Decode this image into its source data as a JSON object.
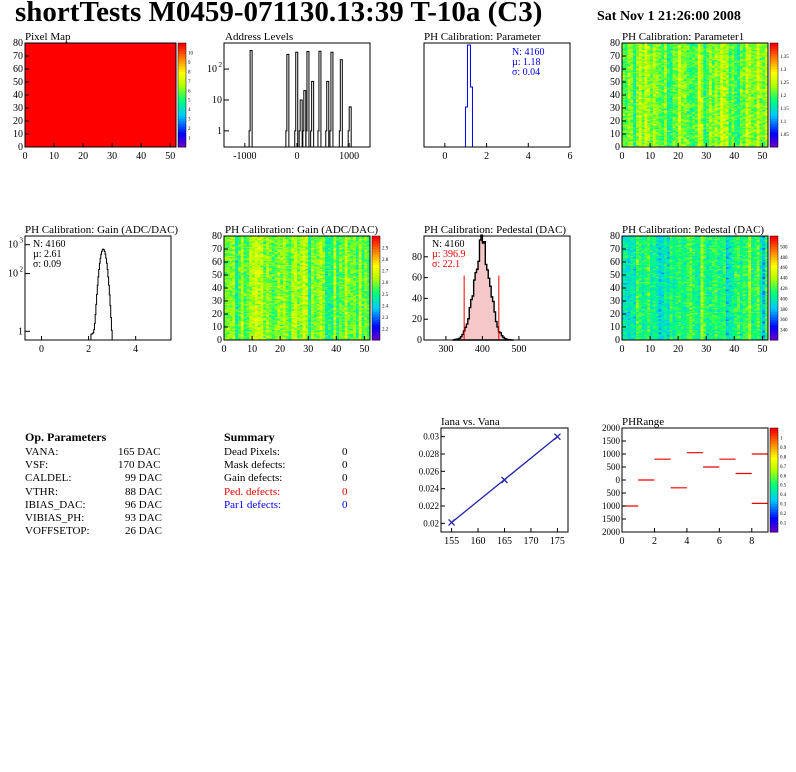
{
  "header": {
    "title": "shortTests M0459-071130.13:39 T-10a (C3)",
    "date": "Sat Nov  1 21:26:00 2008"
  },
  "palette": {
    "frame": "#000000",
    "blue_text": "#0000ee",
    "red_text": "#ee0000",
    "fit_line": "#2222aa",
    "hist_fill": "#f4c8c8"
  },
  "panels": [
    {
      "id": "pixel-map",
      "title": "Pixel Map",
      "chart_data": {
        "type": "heatmap",
        "xlim": [
          0,
          52
        ],
        "ylim": [
          0,
          80
        ],
        "xticks": [
          "0",
          "10",
          "20",
          "30",
          "40",
          "50"
        ],
        "yticks": [
          "0",
          "10",
          "20",
          "30",
          "40",
          "50",
          "60",
          "70",
          "80"
        ],
        "zlim": [
          0,
          10
        ],
        "zticks": [
          "1",
          "2",
          "3",
          "4",
          "5",
          "6",
          "7",
          "8",
          "9",
          "10"
        ],
        "uniform_value": 10
      }
    },
    {
      "id": "address-levels",
      "title": "Address Levels",
      "chart_data": {
        "type": "bar",
        "log_y": true,
        "xlim": [
          -1400,
          1400
        ],
        "ylim": [
          0.3,
          700
        ],
        "xticks": [
          "-1000",
          "0",
          "1000"
        ],
        "yticks": [
          "1",
          "10",
          "10"
        ],
        "ytick_exp": [
          "",
          "",
          "2"
        ],
        "peaks": [
          {
            "x": -880,
            "y": 400
          },
          {
            "x": -175,
            "y": 300
          },
          {
            "x": -5,
            "y": 350
          },
          {
            "x": 80,
            "y": 10
          },
          {
            "x": 150,
            "y": 20
          },
          {
            "x": 210,
            "y": 370
          },
          {
            "x": 300,
            "y": 40
          },
          {
            "x": 440,
            "y": 380
          },
          {
            "x": 590,
            "y": 40
          },
          {
            "x": 670,
            "y": 350
          },
          {
            "x": 850,
            "y": 200
          },
          {
            "x": 1020,
            "y": 6
          }
        ]
      }
    },
    {
      "id": "ph-parameter",
      "title": "PH Calibration: Parameter",
      "stats": [
        "N: 4160",
        "µ: 1.18",
        "σ: 0.04"
      ],
      "chart_data": {
        "type": "bar",
        "xlim": [
          -1,
          6
        ],
        "ylim": [
          0,
          1
        ],
        "xticks": [
          "0",
          "2",
          "4",
          "6"
        ],
        "peak_x": 1.18,
        "peak_sigma": 0.04
      }
    },
    {
      "id": "ph-parameter1",
      "title": "PH Calibration: Parameter1",
      "chart_data": {
        "type": "heatmap",
        "xlim": [
          0,
          52
        ],
        "ylim": [
          0,
          80
        ],
        "xticks": [
          "0",
          "10",
          "20",
          "30",
          "40",
          "50"
        ],
        "yticks": [
          "0",
          "10",
          "20",
          "30",
          "40",
          "50",
          "60",
          "70",
          "80"
        ],
        "zlim": [
          1.0,
          1.4
        ],
        "zticks": [
          "1.05",
          "1.1",
          "1.15",
          "1.2",
          "1.25",
          "1.3",
          "1.35"
        ],
        "mean": 0.55
      }
    },
    {
      "id": "gain-hist",
      "title": "PH Calibration: Gain (ADC/DAC)",
      "stats": [
        "N: 4160",
        "µ: 2.61",
        "σ: 0.09"
      ],
      "chart_data": {
        "type": "bar",
        "log_y": true,
        "xlim": [
          -0.7,
          5.5
        ],
        "ylim": [
          0.5,
          2000
        ],
        "xticks": [
          "0",
          "2",
          "4"
        ],
        "yticks": [
          "1",
          "10",
          "10"
        ],
        "ytick_exp": [
          "",
          "2",
          "3"
        ],
        "mean": 2.61,
        "sigma": 0.09
      }
    },
    {
      "id": "gain-map",
      "title": "PH Calibration: Gain (ADC/DAC)",
      "chart_data": {
        "type": "heatmap",
        "xlim": [
          0,
          52
        ],
        "ylim": [
          0,
          80
        ],
        "xticks": [
          "0",
          "10",
          "20",
          "30",
          "40",
          "50"
        ],
        "yticks": [
          "0",
          "10",
          "20",
          "30",
          "40",
          "50",
          "60",
          "70",
          "80"
        ],
        "zlim": [
          2.1,
          3.0
        ],
        "zticks": [
          "2.2",
          "2.3",
          "2.4",
          "2.5",
          "2.6",
          "2.7",
          "2.8",
          "2.9"
        ],
        "mean": 0.55
      }
    },
    {
      "id": "pedestal-hist",
      "title": "PH Calibration: Pedestal (DAC)",
      "stats": [
        "N: 4160",
        "µ: 396.9",
        "σ: 22.1"
      ],
      "chart_data": {
        "type": "bar",
        "xlim": [
          240,
          640
        ],
        "ylim": [
          0,
          100
        ],
        "xticks": [
          "300",
          "400",
          "500"
        ],
        "yticks": [
          "0",
          "20",
          "40",
          "60",
          "80"
        ],
        "mean": 396.9,
        "sigma": 22.1,
        "cut_lines": [
          350,
          445
        ]
      }
    },
    {
      "id": "pedestal-map",
      "title": "PH Calibration: Pedestal (DAC)",
      "chart_data": {
        "type": "heatmap",
        "xlim": [
          0,
          52
        ],
        "ylim": [
          0,
          80
        ],
        "xticks": [
          "0",
          "10",
          "20",
          "30",
          "40",
          "50"
        ],
        "yticks": [
          "0",
          "10",
          "20",
          "30",
          "40",
          "50",
          "60",
          "70",
          "80"
        ],
        "zlim": [
          340,
          510
        ],
        "zticks": [
          "340",
          "360",
          "380",
          "400",
          "420",
          "440",
          "460",
          "480",
          "500"
        ],
        "mean": 0.45
      }
    },
    {
      "id": "iana-vana",
      "title": "Iana vs. Vana",
      "chart_data": {
        "type": "line",
        "xlim": [
          153,
          177
        ],
        "ylim": [
          0.019,
          0.031
        ],
        "xticks": [
          "155",
          "160",
          "165",
          "170",
          "175"
        ],
        "yticks": [
          "0.02",
          "0.022",
          "0.024",
          "0.026",
          "0.028",
          "0.03"
        ],
        "x": [
          155,
          165,
          175
        ],
        "y": [
          0.0201,
          0.025,
          0.03
        ]
      }
    },
    {
      "id": "phrange",
      "title": "PHRange",
      "chart_data": {
        "type": "heatmap",
        "xlim": [
          0,
          9
        ],
        "ylim": [
          -2000,
          2000
        ],
        "xticks": [
          "0",
          "2",
          "4",
          "6",
          "8"
        ],
        "yticks": [
          "2000",
          "1500",
          "1000",
          "500",
          "0",
          "500",
          "1000",
          "1500",
          "2000"
        ],
        "zticks": [
          "0.1",
          "0.2",
          "0.3",
          "0.4",
          "0.5",
          "0.6",
          "0.7",
          "0.8",
          "0.9",
          "1"
        ],
        "segments": [
          {
            "x": 0,
            "y": -1000
          },
          {
            "x": 1,
            "y": 0
          },
          {
            "x": 2,
            "y": 800
          },
          {
            "x": 3,
            "y": -300
          },
          {
            "x": 4,
            "y": 1050
          },
          {
            "x": 5,
            "y": 500
          },
          {
            "x": 6,
            "y": 800
          },
          {
            "x": 7,
            "y": 250
          },
          {
            "x": 8,
            "y": -900
          },
          {
            "x": 8,
            "y": 1000
          }
        ]
      }
    }
  ],
  "op_parameters": {
    "title": "Op. Parameters",
    "rows": [
      {
        "name": "VANA:",
        "value": "165 DAC"
      },
      {
        "name": "VSF:",
        "value": "170 DAC"
      },
      {
        "name": "CALDEL:",
        "value": "99 DAC"
      },
      {
        "name": "VTHR:",
        "value": "88 DAC"
      },
      {
        "name": "IBIAS_DAC:",
        "value": "96 DAC"
      },
      {
        "name": "VIBIAS_PH:",
        "value": "93 DAC"
      },
      {
        "name": "VOFFSETOP:",
        "value": "26 DAC"
      }
    ]
  },
  "summary": {
    "title": "Summary",
    "rows": [
      {
        "name": "Dead Pixels:",
        "value": "0",
        "color": "#000000"
      },
      {
        "name": "Mask defects:",
        "value": "0",
        "color": "#000000"
      },
      {
        "name": "Gain defects:",
        "value": "0",
        "color": "#000000"
      },
      {
        "name": "Ped. defects:",
        "value": "0",
        "color": "#ee0000"
      },
      {
        "name": "Par1 defects:",
        "value": "0",
        "color": "#0000ee"
      }
    ]
  }
}
